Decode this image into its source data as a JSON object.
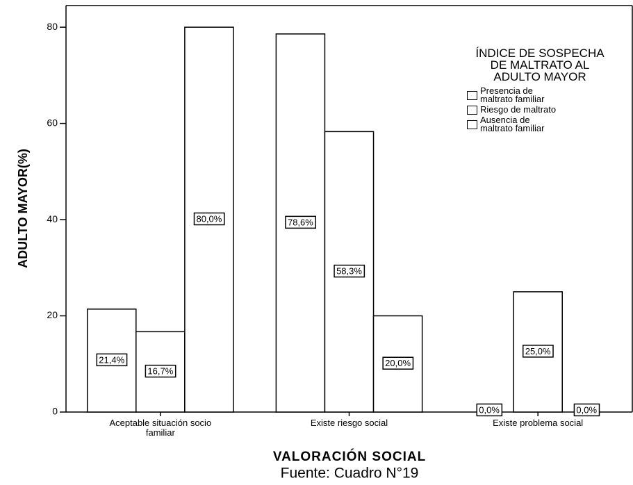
{
  "chart_data": {
    "type": "bar",
    "y_label": "ADULTO MAYOR(%)",
    "x_label": "VALORACIÓN SOCIAL",
    "source": "Fuente: Cuadro N°19",
    "legend_title": "ÍNDICE DE SOSPECHA DE MALTRATO AL ADULTO MAYOR",
    "legend_position": "top right",
    "categories": [
      "Aceptable situación socio familiar",
      "Existe riesgo social",
      "Existe problema social"
    ],
    "series": [
      {
        "name": "Presencia de maltrato familiar",
        "color": "#ffffff",
        "values": [
          21.4,
          78.6,
          0.0
        ],
        "value_labels": [
          "21,4%",
          "78,6%",
          "0,0%"
        ]
      },
      {
        "name": "Riesgo de maltrato",
        "color": "#ffffff",
        "values": [
          16.7,
          58.3,
          25.0
        ],
        "value_labels": [
          "16,7%",
          "58,3%",
          "25,0%"
        ]
      },
      {
        "name": "Ausencia de maltrato familiar",
        "color": "#ffffff",
        "values": [
          80.0,
          20.0,
          0.0
        ],
        "value_labels": [
          "80,0%",
          "20,0%",
          "0,0%"
        ]
      }
    ],
    "ylim": [
      0,
      84.5
    ],
    "yticks": [
      0,
      20,
      40,
      60,
      80
    ],
    "grid": false
  }
}
